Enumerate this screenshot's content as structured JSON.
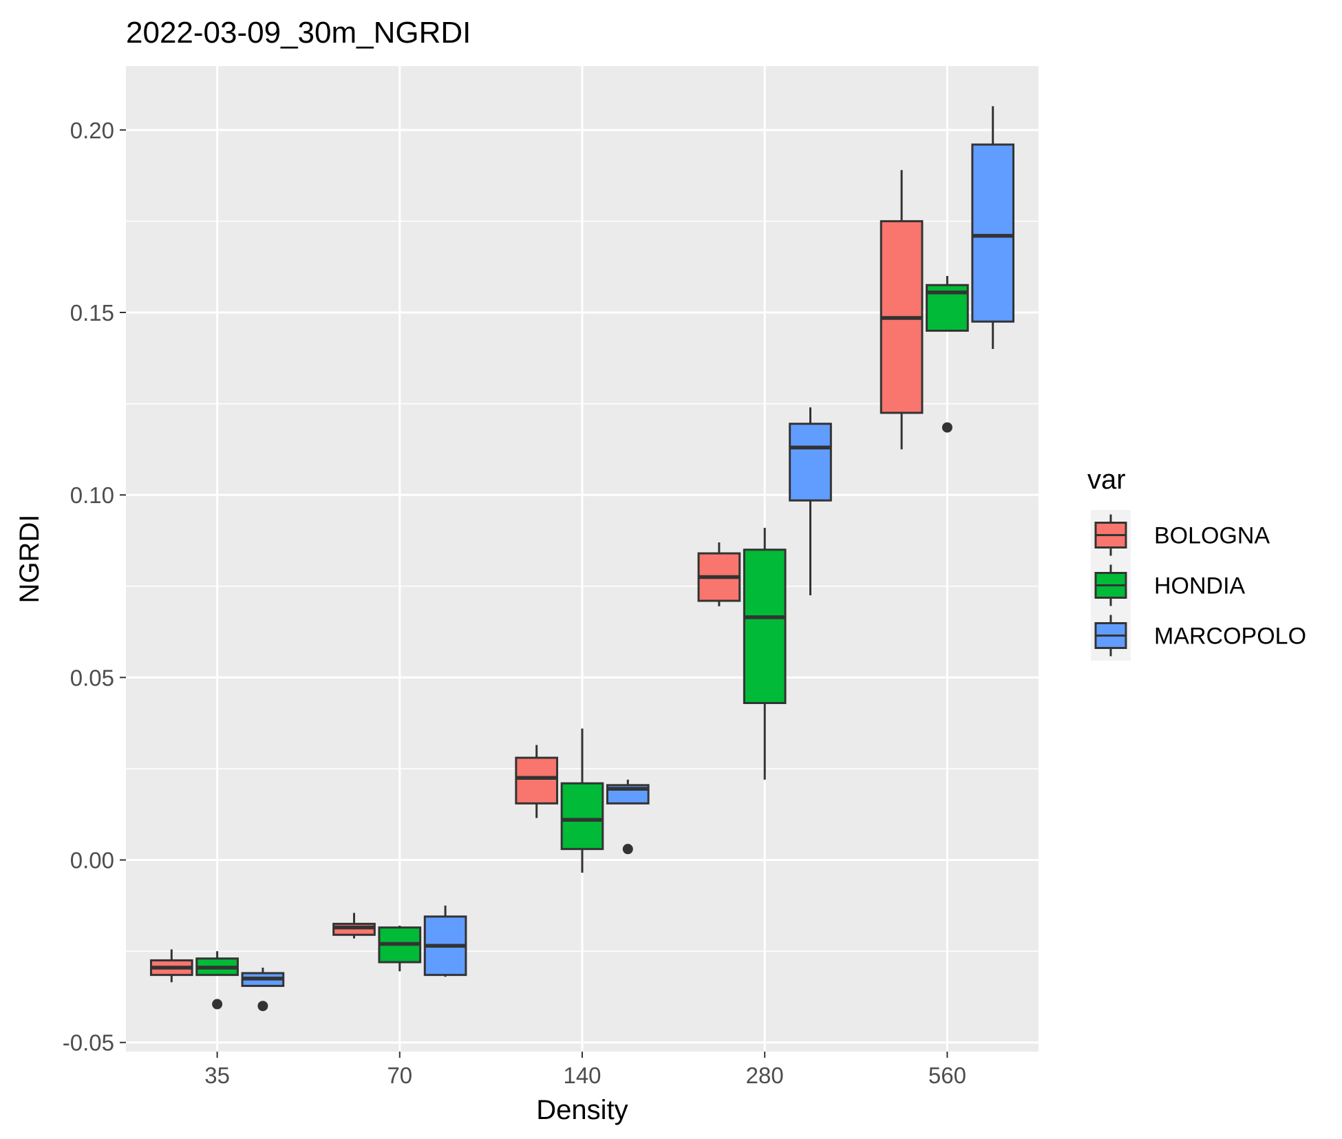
{
  "chart_data": {
    "type": "boxplot",
    "title": "2022-03-09_30m_NGRDI",
    "xlabel": "Density",
    "ylabel": "NGRDI",
    "categories": [
      "35",
      "70",
      "140",
      "280",
      "560"
    ],
    "ylim": [
      -0.0525,
      0.2175
    ],
    "yticks": [
      -0.05,
      0.0,
      0.05,
      0.1,
      0.15,
      0.2
    ],
    "ytick_labels": [
      "-0.05",
      "0.00",
      "0.05",
      "0.10",
      "0.15",
      "0.20"
    ],
    "grid": true,
    "background": "#EBEBEB",
    "legend": {
      "title": "var",
      "position": "right"
    },
    "series": [
      {
        "name": "BOLOGNA",
        "color": "#F8766D",
        "boxes": [
          {
            "whisker_low": -0.0335,
            "q1": -0.0315,
            "median": -0.0295,
            "q3": -0.0275,
            "whisker_high": -0.0245,
            "outliers": []
          },
          {
            "whisker_low": -0.0215,
            "q1": -0.0205,
            "median": -0.0185,
            "q3": -0.0175,
            "whisker_high": -0.0145,
            "outliers": []
          },
          {
            "whisker_low": 0.0115,
            "q1": 0.0155,
            "median": 0.0225,
            "q3": 0.028,
            "whisker_high": 0.0315,
            "outliers": []
          },
          {
            "whisker_low": 0.0695,
            "q1": 0.071,
            "median": 0.0775,
            "q3": 0.084,
            "whisker_high": 0.087,
            "outliers": []
          },
          {
            "whisker_low": 0.1125,
            "q1": 0.1225,
            "median": 0.1485,
            "q3": 0.175,
            "whisker_high": 0.189,
            "outliers": []
          }
        ]
      },
      {
        "name": "HONDIA",
        "color": "#00BA38",
        "boxes": [
          {
            "whisker_low": -0.0315,
            "q1": -0.0315,
            "median": -0.0295,
            "q3": -0.027,
            "whisker_high": -0.025,
            "outliers": [
              -0.0395
            ]
          },
          {
            "whisker_low": -0.0305,
            "q1": -0.028,
            "median": -0.023,
            "q3": -0.0185,
            "whisker_high": -0.018,
            "outliers": []
          },
          {
            "whisker_low": -0.0035,
            "q1": 0.003,
            "median": 0.011,
            "q3": 0.021,
            "whisker_high": 0.036,
            "outliers": []
          },
          {
            "whisker_low": 0.022,
            "q1": 0.043,
            "median": 0.0665,
            "q3": 0.085,
            "whisker_high": 0.091,
            "outliers": []
          },
          {
            "whisker_low": 0.145,
            "q1": 0.145,
            "median": 0.1555,
            "q3": 0.1575,
            "whisker_high": 0.16,
            "outliers": [
              0.1185
            ]
          }
        ]
      },
      {
        "name": "MARCOPOLO",
        "color": "#619CFF",
        "boxes": [
          {
            "whisker_low": -0.0345,
            "q1": -0.0345,
            "median": -0.0325,
            "q3": -0.031,
            "whisker_high": -0.0295,
            "outliers": [
              -0.04
            ]
          },
          {
            "whisker_low": -0.032,
            "q1": -0.0315,
            "median": -0.0235,
            "q3": -0.0155,
            "whisker_high": -0.0125,
            "outliers": []
          },
          {
            "whisker_low": 0.0155,
            "q1": 0.0155,
            "median": 0.0195,
            "q3": 0.0205,
            "whisker_high": 0.022,
            "outliers": [
              0.003
            ]
          },
          {
            "whisker_low": 0.0725,
            "q1": 0.0985,
            "median": 0.113,
            "q3": 0.1195,
            "whisker_high": 0.124,
            "outliers": []
          },
          {
            "whisker_low": 0.14,
            "q1": 0.1475,
            "median": 0.171,
            "q3": 0.196,
            "whisker_high": 0.2065,
            "outliers": []
          }
        ]
      }
    ]
  }
}
